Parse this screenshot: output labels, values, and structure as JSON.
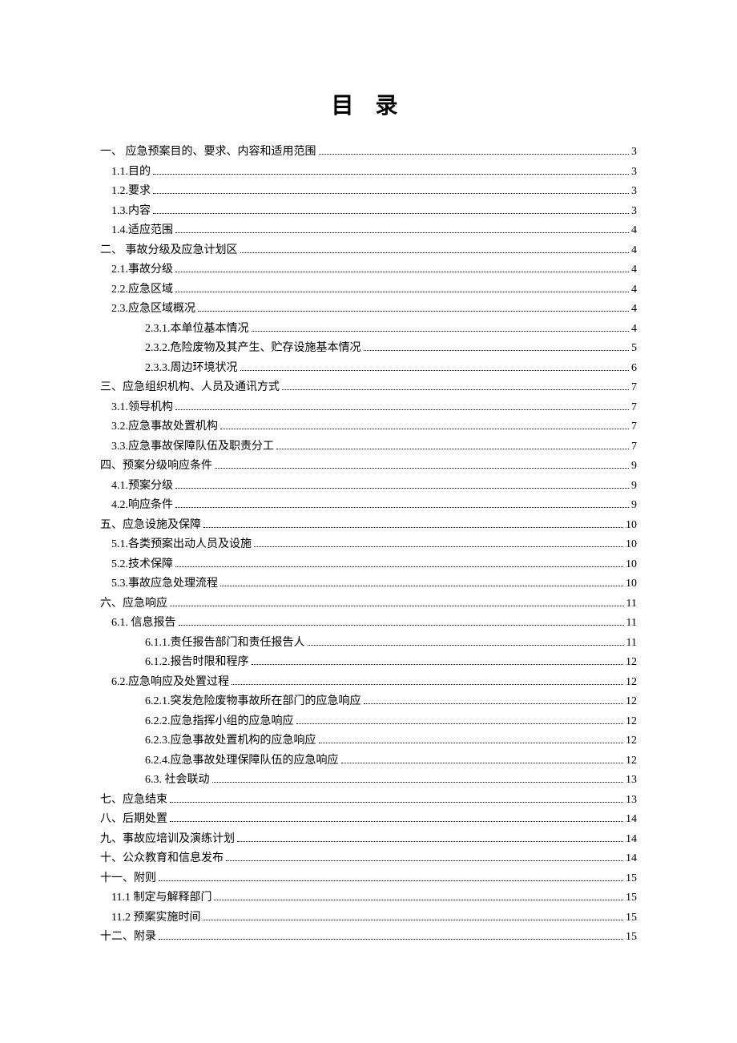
{
  "title": "目 录",
  "text_color": "#000000",
  "background_color": "#ffffff",
  "title_fontsize": 28,
  "body_fontsize": 14,
  "entries": [
    {
      "label": "一、 应急预案目的、要求、内容和适用范围",
      "page": "3",
      "indent": 0
    },
    {
      "label": "1.1.目的",
      "page": "3",
      "indent": 1
    },
    {
      "label": "1.2.要求",
      "page": "3",
      "indent": 1
    },
    {
      "label": "1.3.内容",
      "page": "3",
      "indent": 1
    },
    {
      "label": "1.4.适应范围",
      "page": "4",
      "indent": 1
    },
    {
      "label": "二、 事故分级及应急计划区",
      "page": "4",
      "indent": 0
    },
    {
      "label": "2.1.事故分级",
      "page": "4",
      "indent": 1
    },
    {
      "label": "2.2.应急区域",
      "page": "4",
      "indent": 1
    },
    {
      "label": "2.3.应急区域概况",
      "page": "4",
      "indent": 1
    },
    {
      "label": "2.3.1.本单位基本情况",
      "page": "4",
      "indent": 2
    },
    {
      "label": "2.3.2.危险废物及其产生、贮存设施基本情况",
      "page": "5",
      "indent": 2
    },
    {
      "label": "2.3.3.周边环境状况",
      "page": "6",
      "indent": 2
    },
    {
      "label": "三、应急组织机构、人员及通讯方式",
      "page": "7",
      "indent": 0
    },
    {
      "label": "3.1.领导机构",
      "page": "7",
      "indent": 1
    },
    {
      "label": "3.2.应急事故处置机构",
      "page": "7",
      "indent": 1
    },
    {
      "label": "3.3.应急事故保障队伍及职责分工",
      "page": "7",
      "indent": 1
    },
    {
      "label": "四、预案分级响应条件",
      "page": "9",
      "indent": 0
    },
    {
      "label": "4.1.预案分级",
      "page": "9",
      "indent": 1
    },
    {
      "label": "4.2.响应条件",
      "page": "9",
      "indent": 1
    },
    {
      "label": "五、应急设施及保障",
      "page": "10",
      "indent": 0
    },
    {
      "label": "5.1.各类预案出动人员及设施",
      "page": "10",
      "indent": 1
    },
    {
      "label": "5.2.技术保障",
      "page": "10",
      "indent": 1
    },
    {
      "label": "5.3.事故应急处理流程",
      "page": "10",
      "indent": 1
    },
    {
      "label": "六、应急响应",
      "page": "11",
      "indent": 0
    },
    {
      "label": "6.1. 信息报告",
      "page": "11",
      "indent": 1
    },
    {
      "label": "6.1.1.责任报告部门和责任报告人",
      "page": "11",
      "indent": 2
    },
    {
      "label": "6.1.2.报告时限和程序",
      "page": "12",
      "indent": 2
    },
    {
      "label": "6.2.应急响应及处置过程",
      "page": "12",
      "indent": 1
    },
    {
      "label": "6.2.1.突发危险废物事故所在部门的应急响应",
      "page": "12",
      "indent": 2
    },
    {
      "label": "6.2.2.应急指挥小组的应急响应",
      "page": "12",
      "indent": 2
    },
    {
      "label": "6.2.3.应急事故处置机构的应急响应",
      "page": "12",
      "indent": 2
    },
    {
      "label": "6.2.4.应急事故处理保障队伍的应急响应",
      "page": "12",
      "indent": 2
    },
    {
      "label": "6.3. 社会联动",
      "page": "13",
      "indent": 2
    },
    {
      "label": "七、应急结束",
      "page": "13",
      "indent": 0
    },
    {
      "label": "八、后期处置",
      "page": "14",
      "indent": 0
    },
    {
      "label": "九、事故应培训及演练计划",
      "page": "14",
      "indent": 0
    },
    {
      "label": "十、公众教育和信息发布",
      "page": "14",
      "indent": 0
    },
    {
      "label": "十一、附则",
      "page": "15",
      "indent": 0
    },
    {
      "label": "11.1 制定与解释部门",
      "page": "15",
      "indent": 1
    },
    {
      "label": "11.2 预案实施时间",
      "page": "15",
      "indent": 1
    },
    {
      "label": "十二、附录",
      "page": "15",
      "indent": 0
    }
  ]
}
